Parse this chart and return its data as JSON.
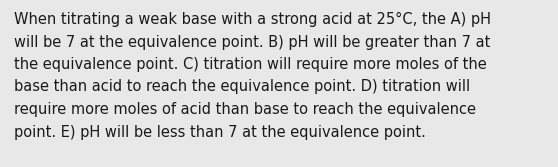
{
  "text": "When titrating a weak base with a strong acid at 25°C, the A) pH will be 7 at the equivalence point. B) pH will be greater than 7 at the equivalence point. C) titration will require more moles of the base than acid to reach the equivalence point. D) titration will require more moles of acid than base to reach the equivalence point. E) pH will be less than 7 at the equivalence point.",
  "background_color": "#e8e8e8",
  "text_color": "#1a1a1a",
  "font_size": 10.5,
  "fig_width": 5.58,
  "fig_height": 1.67,
  "line1": "When titrating a weak base with a strong acid at 25°C, the A) pH",
  "line2": "will be 7 at the equivalence point. B) pH will be greater than 7 at",
  "line3": "the equivalence point. C) titration will require more moles of the",
  "line4": "base than acid to reach the equivalence point. D) titration will",
  "line5": "require more moles of acid than base to reach the equivalence",
  "line6": "point. E) pH will be less than 7 at the equivalence point."
}
